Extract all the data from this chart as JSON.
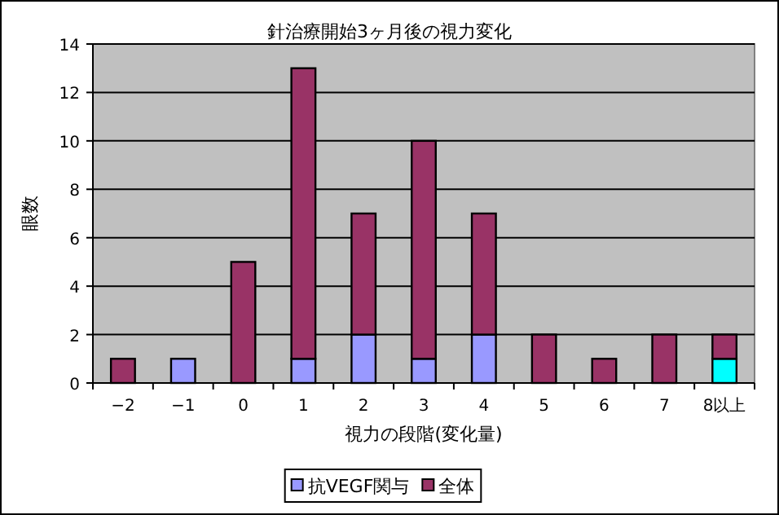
{
  "chart_data": {
    "type": "bar",
    "stacked": true,
    "title": "針治療開始3ヶ月後の視力変化",
    "xlabel": "視力の段階(変化量)",
    "ylabel": "眼数",
    "categories": [
      "−2",
      "−1",
      "0",
      "1",
      "2",
      "3",
      "4",
      "5",
      "6",
      "7",
      "8以上"
    ],
    "series": [
      {
        "name": "抗VEGF関与",
        "color": "#9999ff",
        "colors": [
          "#9999ff",
          "#9999ff",
          "#9999ff",
          "#9999ff",
          "#9999ff",
          "#9999ff",
          "#9999ff",
          "#9999ff",
          "#9999ff",
          "#9999ff",
          "#00ffff"
        ],
        "values": [
          0,
          1,
          0,
          1,
          2,
          1,
          2,
          0,
          0,
          0,
          1
        ]
      },
      {
        "name": "全体",
        "color": "#993366",
        "values": [
          1,
          0,
          5,
          12,
          5,
          9,
          5,
          2,
          1,
          2,
          1
        ]
      }
    ],
    "ylim": [
      0,
      14
    ],
    "yticks": [
      0,
      2,
      4,
      6,
      8,
      10,
      12,
      14
    ],
    "grid": "y",
    "legend": "bottom"
  }
}
